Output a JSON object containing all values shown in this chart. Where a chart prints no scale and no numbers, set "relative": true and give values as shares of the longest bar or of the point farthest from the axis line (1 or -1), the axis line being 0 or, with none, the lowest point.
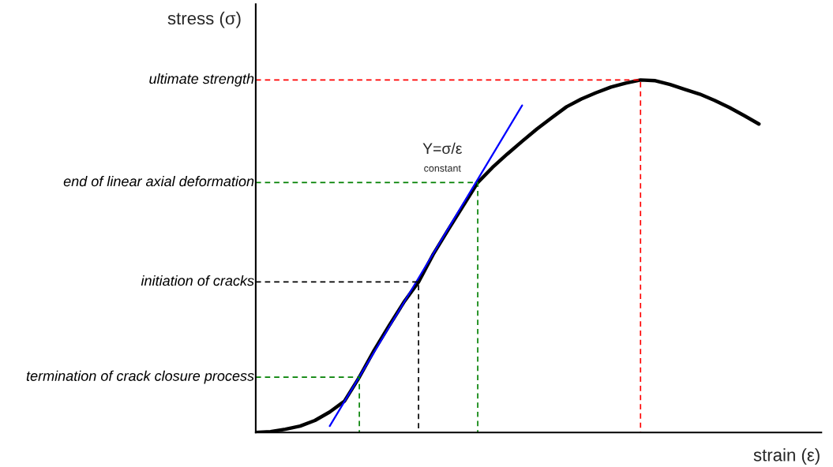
{
  "chart_data": {
    "type": "line",
    "relative": true,
    "xlabel": "strain (ε)",
    "ylabel": "stress (σ)",
    "categories": [
      null,
      null,
      null,
      null,
      null,
      null,
      null,
      null,
      null,
      null,
      null,
      null,
      null,
      null,
      null,
      null,
      null,
      null,
      null,
      null,
      null,
      null,
      null,
      null,
      null,
      null,
      null,
      null,
      null,
      null,
      null,
      null,
      null,
      null,
      null
    ],
    "series": [
      {
        "color": "#000000",
        "values": [
          0,
          0.002,
          0.009,
          0.018,
          0.034,
          0.058,
          0.089,
          0.157,
          0.233,
          0.302,
          0.369,
          0.427,
          0.506,
          0.575,
          0.642,
          0.709,
          0.752,
          0.79,
          0.826,
          0.861,
          0.893,
          0.924,
          0.946,
          0.964,
          0.98,
          0.991,
          1.0,
          0.998,
          0.987,
          0.973,
          0.96,
          0.942,
          0.922,
          0.899,
          0.875
        ]
      },
      {
        "type": "line",
        "color": "#0000ff",
        "values": [
          null,
          null,
          null,
          null,
          null,
          0.018,
          0.088,
          0.158,
          0.228,
          0.298,
          0.368,
          0.438,
          0.508,
          0.578,
          0.648,
          0.718,
          0.788,
          0.858,
          0.928,
          null,
          null,
          null,
          null,
          null,
          null,
          null,
          null,
          null,
          null,
          null,
          null,
          null,
          null,
          null,
          null
        ]
      }
    ],
    "ref_lines": [
      {
        "axis": "y",
        "value": 1.0,
        "label": "ultimate strength",
        "color": "#ff0000",
        "line_style": "dashed"
      },
      {
        "axis": "y",
        "value": 0.709,
        "label": "end of linear axial deformation",
        "color": "#008000",
        "line_style": "dashed"
      },
      {
        "axis": "y",
        "value": 0.427,
        "label": "initiation of cracks",
        "color": "#000000",
        "line_style": "dashed"
      },
      {
        "axis": "y",
        "value": 0.157,
        "label": "termination of crack closure process",
        "color": "#008000",
        "line_style": "dashed"
      }
    ],
    "annotations": [
      "Y=σ/ε",
      "constant"
    ],
    "legend": false
  }
}
